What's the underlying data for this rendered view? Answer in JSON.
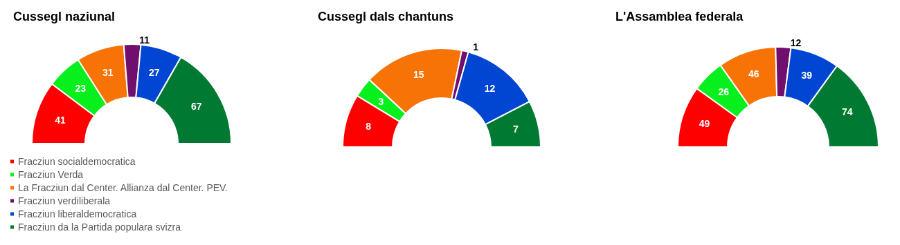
{
  "chart_data": [
    {
      "type": "donut",
      "title": "Cussegl naziunal",
      "categories": [
        "Fracziun socialdemocratica",
        "Fracziun Verda",
        "La Fracziun dal Center. Allianza dal Center. PEV.",
        "Fracziun verdiliberala",
        "Fracziun liberaldemocratica",
        "Fracziun da la Partida populara svizra"
      ],
      "values": [
        41,
        23,
        31,
        11,
        27,
        67
      ],
      "colors": [
        "#ff0000",
        "#08ef1e",
        "#f77306",
        "#710f6f",
        "#0046d3",
        "#007a33"
      ],
      "data_labels": true,
      "legend": "bottom"
    },
    {
      "type": "donut",
      "title": "Cussegl dals chantuns",
      "categories": [
        null,
        null,
        null,
        null,
        null,
        null
      ],
      "values": [
        8,
        3,
        15,
        1,
        12,
        7
      ],
      "colors": [
        "#ff0000",
        "#08ef1e",
        "#f77306",
        "#710f6f",
        "#0046d3",
        "#007a33"
      ],
      "data_labels": true
    },
    {
      "type": "donut",
      "title": "L'Assamblea federala",
      "categories": [
        null,
        null,
        null,
        null,
        null,
        null
      ],
      "values": [
        49,
        26,
        46,
        12,
        39,
        74
      ],
      "colors": [
        "#ff0000",
        "#08ef1e",
        "#f77306",
        "#710f6f",
        "#0046d3",
        "#007a33"
      ],
      "data_labels": true
    }
  ]
}
